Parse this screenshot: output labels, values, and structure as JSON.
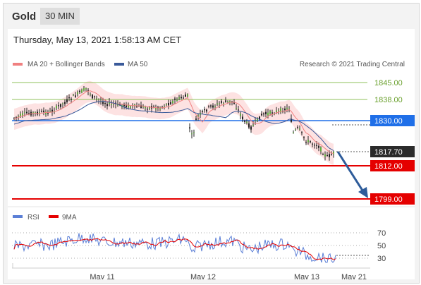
{
  "header": {
    "title": "Gold",
    "timeframe": "30 MIN"
  },
  "timestamp": "Thursday, May 13, 2021 1:58:13 AM CET",
  "legend": {
    "item1": "MA 20 + Bollinger Bands",
    "item2": "MA 50",
    "copyright": "Research © 2021 Trading Central"
  },
  "colors": {
    "ma20": "#f08080",
    "ma50": "#3a5a9a",
    "band": "#fde2e2",
    "green": "#8fc15b",
    "blue": "#1f6fe8",
    "red": "#e50000",
    "dark": "#2b2b2b",
    "rsi": "#5b7fd6",
    "arrow": "#2e5c9a"
  },
  "levels": [
    {
      "label": "1845.00",
      "style": "green-text"
    },
    {
      "label": "1838.00",
      "style": "green-text"
    },
    {
      "label": "1830.00",
      "style": "blue-box"
    },
    {
      "label": "1817.70",
      "style": "dark-box"
    },
    {
      "label": "1812.00",
      "style": "red-box"
    },
    {
      "label": "1799.00",
      "style": "red-box"
    }
  ],
  "rsi": {
    "legend1": "RSI",
    "legend2": "9MA",
    "ticks": [
      "70",
      "50",
      "30"
    ]
  },
  "xaxis": [
    "May 11",
    "May 12",
    "May 13",
    "May 21"
  ]
}
